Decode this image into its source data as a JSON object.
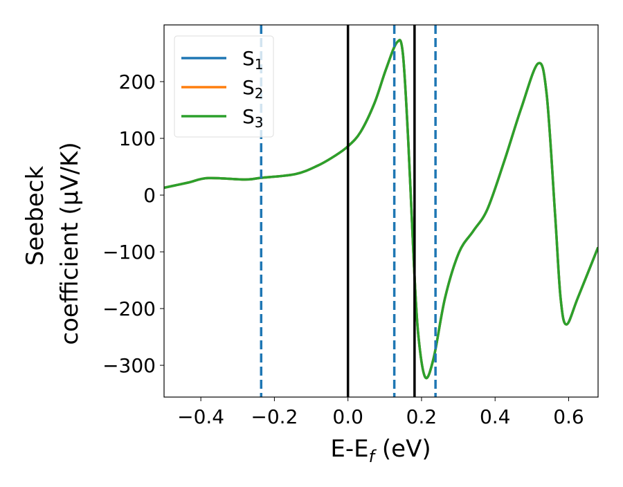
{
  "chart_data": {
    "type": "line",
    "title": "",
    "xlabel": "E-E",
    "xlabel_sub": "f",
    "xlabel_suffix": " (eV)",
    "ylabel_line1": "Seebeck",
    "ylabel_line2": "coefficient  (μV/K)",
    "xlim": [
      -0.5,
      0.68
    ],
    "ylim": [
      -356,
      300
    ],
    "xticks": [
      -0.4,
      -0.2,
      0.0,
      0.2,
      0.4,
      0.6
    ],
    "xtick_labels": [
      "−0.4",
      "−0.2",
      "0.0",
      "0.2",
      "0.4",
      "0.6"
    ],
    "yticks": [
      -300,
      -200,
      -100,
      0,
      100,
      200
    ],
    "ytick_labels": [
      "−300",
      "−200",
      "−100",
      "0",
      "100",
      "200"
    ],
    "grid": false,
    "legend_placement": "top-left",
    "x": [
      -0.5,
      -0.435,
      -0.38,
      -0.28,
      -0.236,
      -0.143,
      -0.082,
      -0.036,
      0.0,
      0.034,
      0.072,
      0.103,
      0.133,
      0.149,
      0.164,
      0.179,
      0.191,
      0.21,
      0.233,
      0.264,
      0.302,
      0.341,
      0.379,
      0.425,
      0.471,
      0.517,
      0.54,
      0.563,
      0.578,
      0.594,
      0.625,
      0.68
    ],
    "series": [
      {
        "name": "S",
        "sub": "1",
        "color": "#1f77b4",
        "values": [
          13,
          22,
          30,
          27.5,
          30.5,
          37,
          52,
          69,
          86,
          111,
          162,
          221,
          269,
          251,
          94,
          -118,
          -245,
          -321,
          -287,
          -181,
          -101,
          -63,
          -25,
          60,
          153,
          232,
          179,
          -33,
          -181,
          -228,
          -181,
          -92
        ]
      },
      {
        "name": "S",
        "sub": "2",
        "color": "#ff7f0e",
        "values": [
          13,
          22,
          30,
          27.5,
          30.5,
          37,
          52,
          69,
          86,
          111,
          162,
          221,
          269,
          251,
          94,
          -118,
          -245,
          -321,
          -287,
          -181,
          -101,
          -63,
          -25,
          60,
          153,
          232,
          179,
          -33,
          -181,
          -228,
          -181,
          -92
        ]
      },
      {
        "name": "S",
        "sub": "3",
        "color": "#2ca02c",
        "values": [
          13,
          22,
          30,
          27.5,
          30.5,
          37,
          52,
          69,
          86,
          111,
          162,
          221,
          269,
          251,
          94,
          -118,
          -245,
          -321,
          -287,
          -181,
          -101,
          -63,
          -25,
          60,
          153,
          232,
          179,
          -33,
          -181,
          -228,
          -181,
          -92
        ]
      }
    ],
    "vlines": [
      {
        "x": -0.236,
        "style": "dashed",
        "color": "#1f77b4"
      },
      {
        "x": 0.126,
        "style": "dashed",
        "color": "#1f77b4"
      },
      {
        "x": 0.238,
        "style": "dashed",
        "color": "#1f77b4"
      },
      {
        "x": 0.0,
        "style": "solid",
        "color": "#000000"
      },
      {
        "x": 0.181,
        "style": "solid",
        "color": "#000000"
      }
    ]
  }
}
